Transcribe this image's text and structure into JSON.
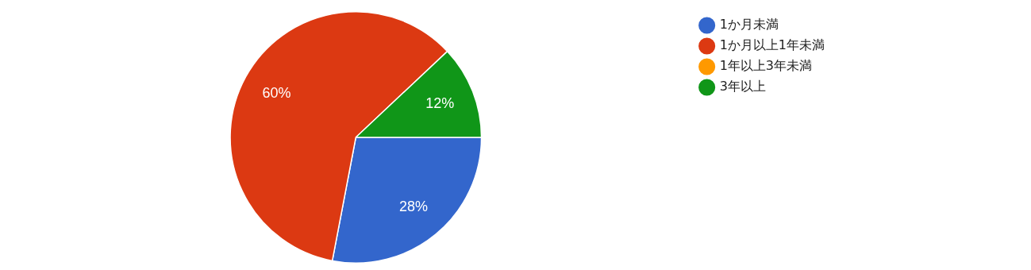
{
  "chart_data": {
    "type": "pie",
    "categories": [
      "1か月未満",
      "1か月以上1年未満",
      "1年以上3年未満",
      "3年以上"
    ],
    "values": [
      28,
      60,
      0,
      12
    ],
    "colors": [
      "#3366cc",
      "#dc3912",
      "#ff9900",
      "#109618"
    ],
    "value_labels": [
      "28%",
      "60%",
      null,
      "12%"
    ],
    "legend": "right"
  }
}
